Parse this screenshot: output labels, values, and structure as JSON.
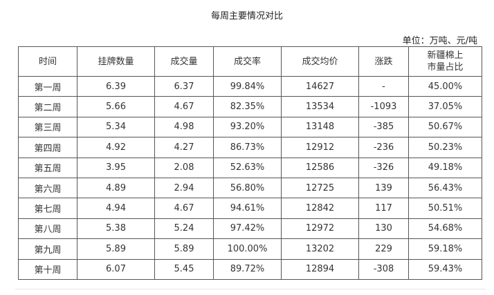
{
  "title": "每周主要情况对比",
  "unit": "单位：万吨、元/吨",
  "table": {
    "headers": [
      "时间",
      "挂牌数量",
      "成交量",
      "成交率",
      "成交均价",
      "涨跌",
      "新疆棉上\n市量占比"
    ],
    "rows": [
      [
        "第一周",
        "6.39",
        "6.37",
        "99.84%",
        "14627",
        "-",
        "45.00%"
      ],
      [
        "第二周",
        "5.66",
        "4.67",
        "82.35%",
        "13534",
        "-1093",
        "37.05%"
      ],
      [
        "第三周",
        "5.34",
        "4.98",
        "93.20%",
        "13148",
        "-385",
        "50.67%"
      ],
      [
        "第四周",
        "4.92",
        "4.27",
        "86.73%",
        "12912",
        "-236",
        "50.23%"
      ],
      [
        "第五周",
        "3.95",
        "2.08",
        "52.63%",
        "12586",
        "-326",
        "49.18%"
      ],
      [
        "第六周",
        "4.89",
        "2.94",
        "56.80%",
        "12725",
        "139",
        "56.43%"
      ],
      [
        "第七周",
        "4.94",
        "4.67",
        "94.61%",
        "12842",
        "117",
        "50.51%"
      ],
      [
        "第八周",
        "5.38",
        "5.24",
        "97.42%",
        "12972",
        "130",
        "54.68%"
      ],
      [
        "第九周",
        "5.89",
        "5.89",
        "100.00%",
        "13202",
        "229",
        "59.18%"
      ],
      [
        "第十周",
        "6.07",
        "5.45",
        "89.72%",
        "12894",
        "-308",
        "59.43%"
      ]
    ]
  }
}
